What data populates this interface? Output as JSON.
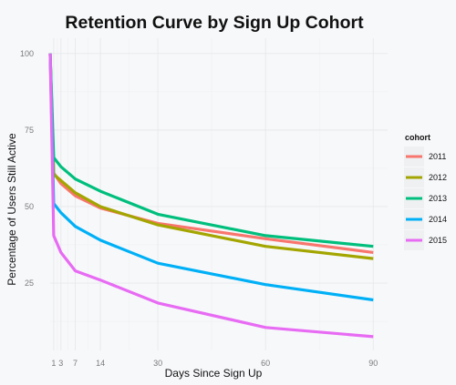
{
  "chart_data": {
    "type": "line",
    "title": "Retention Curve by Sign Up Cohort",
    "xlabel": "Days Since Sign Up",
    "ylabel": "Percentage of Users Still Active",
    "xlim": [
      0,
      94
    ],
    "ylim": [
      3,
      105
    ],
    "x_ticks": [
      1,
      3,
      7,
      14,
      30,
      60,
      90
    ],
    "y_ticks": [
      25,
      50,
      75,
      100
    ],
    "grid": true,
    "legend": {
      "title": "cohort",
      "position": "right"
    },
    "x": [
      0,
      1,
      3,
      7,
      14,
      30,
      60,
      90
    ],
    "series": [
      {
        "name": "2011",
        "color": "#f8766d",
        "values": [
          100,
          61,
          57.5,
          53.5,
          49.5,
          44.5,
          39.5,
          35
        ]
      },
      {
        "name": "2012",
        "color": "#a3a500",
        "values": [
          100,
          60.5,
          58.5,
          54.5,
          50,
          44,
          37,
          33
        ]
      },
      {
        "name": "2013",
        "color": "#00bf7d",
        "values": [
          100,
          66,
          63,
          59,
          55,
          47.5,
          40.5,
          37
        ]
      },
      {
        "name": "2014",
        "color": "#00b0f6",
        "values": [
          100,
          51,
          48,
          43.5,
          39,
          31.5,
          24.5,
          19.5
        ]
      },
      {
        "name": "2015",
        "color": "#e76bf3",
        "values": [
          100,
          40.5,
          35,
          29,
          26,
          18.5,
          10.5,
          7.5
        ]
      }
    ]
  }
}
